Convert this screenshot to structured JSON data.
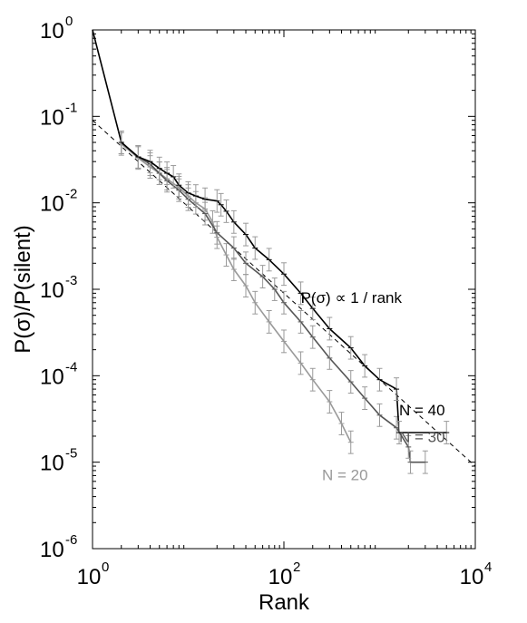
{
  "chart_data": {
    "type": "line",
    "title": "",
    "xlabel": "Rank",
    "ylabel": "P(σ)/P(silent)",
    "x_scale": "log",
    "y_scale": "log",
    "xlim": [
      1,
      10000
    ],
    "ylim": [
      1e-06,
      1
    ],
    "x_ticks": [
      {
        "base": "10",
        "exp": "0",
        "value": 1
      },
      {
        "base": "10",
        "exp": "2",
        "value": 100
      },
      {
        "base": "10",
        "exp": "4",
        "value": 10000
      }
    ],
    "y_ticks": [
      {
        "base": "10",
        "exp": "0",
        "value": 1
      },
      {
        "base": "10",
        "exp": "-1",
        "value": 0.1
      },
      {
        "base": "10",
        "exp": "-2",
        "value": 0.01
      },
      {
        "base": "10",
        "exp": "-3",
        "value": 0.001
      },
      {
        "base": "10",
        "exp": "-4",
        "value": 0.0001
      },
      {
        "base": "10",
        "exp": "-5",
        "value": 1e-05
      },
      {
        "base": "10",
        "exp": "-6",
        "value": 1e-06
      }
    ],
    "grid": false,
    "series": [
      {
        "name": "N = 40",
        "color": "#000000",
        "x": [
          1,
          2,
          3,
          4,
          5,
          6,
          7,
          8,
          10,
          12,
          15,
          20,
          22,
          25,
          30,
          40,
          50,
          70,
          100,
          150,
          200,
          300,
          500,
          700,
          1000,
          1500,
          1600,
          5000
        ],
        "y": [
          1,
          0.05,
          0.034,
          0.03,
          0.025,
          0.022,
          0.02,
          0.016,
          0.013,
          0.012,
          0.011,
          0.0105,
          0.0095,
          0.008,
          0.006,
          0.0043,
          0.003,
          0.0022,
          0.0015,
          0.0009,
          0.0006,
          0.00035,
          0.00021,
          0.00013,
          9e-05,
          7e-05,
          2.2e-05,
          2.2e-05
        ]
      },
      {
        "name": "N = 30",
        "color": "#555555",
        "x": [
          2,
          3,
          4,
          5,
          6,
          8,
          10,
          15,
          20,
          30,
          40,
          60,
          80,
          100,
          150,
          200,
          300,
          500,
          700,
          1000,
          1500,
          2000,
          2100,
          3000
        ],
        "y": [
          0.05,
          0.034,
          0.028,
          0.022,
          0.018,
          0.014,
          0.011,
          0.0075,
          0.0045,
          0.003,
          0.002,
          0.0014,
          0.001,
          0.0007,
          0.00042,
          0.00028,
          0.00016,
          8.5e-05,
          5.5e-05,
          3.5e-05,
          2.5e-05,
          1.5e-05,
          1e-05,
          1e-05
        ]
      },
      {
        "name": "N = 20",
        "color": "#999999",
        "x": [
          2,
          3,
          4,
          5,
          6,
          8,
          10,
          12,
          15,
          18,
          20,
          25,
          30,
          40,
          50,
          70,
          100,
          150,
          200,
          300,
          400,
          500
        ],
        "y": [
          0.048,
          0.033,
          0.026,
          0.022,
          0.019,
          0.015,
          0.012,
          0.01,
          0.0085,
          0.006,
          0.004,
          0.0025,
          0.0017,
          0.0011,
          0.0007,
          0.00042,
          0.00025,
          0.00014,
          9e-05,
          5e-05,
          2.8e-05,
          1.7e-05
        ]
      }
    ],
    "reference_line": {
      "label": "P(σ) ∝ 1 / rank",
      "x": [
        1,
        10000
      ],
      "y": [
        0.09,
        9e-06
      ]
    },
    "annotations": [
      {
        "text": "P(σ) ∝ 1 / rank",
        "x": 150,
        "y": 0.0007,
        "color": "#000000"
      },
      {
        "text": "N = 40",
        "x": 1600,
        "y": 3.5e-05,
        "color": "#000000"
      },
      {
        "text": "N = 30",
        "x": 1600,
        "y": 1.7e-05,
        "color": "#555555"
      },
      {
        "text": "N = 20",
        "x": 250,
        "y": 6.2e-06,
        "color": "#999999"
      }
    ]
  }
}
